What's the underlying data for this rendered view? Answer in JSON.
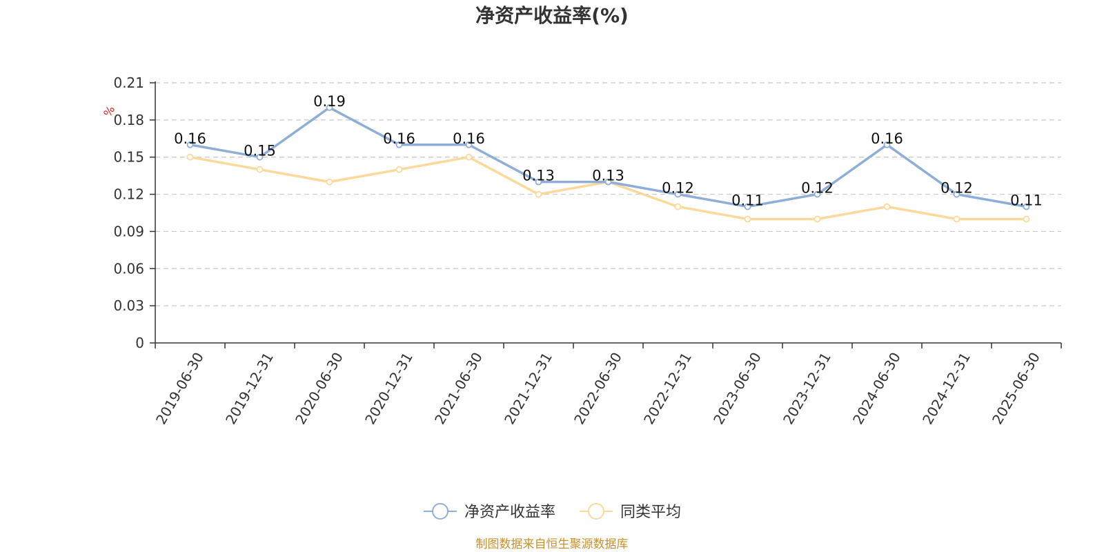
{
  "chart_data": {
    "type": "line",
    "title": "净资产收益率(%)",
    "ylabel": "%",
    "categories": [
      "2019-06-30",
      "2019-12-31",
      "2020-06-30",
      "2020-12-31",
      "2021-06-30",
      "2021-12-31",
      "2022-06-30",
      "2022-12-31",
      "2023-06-30",
      "2023-12-31",
      "2024-06-30",
      "2024-12-31",
      "2025-06-30"
    ],
    "series": [
      {
        "name": "净资产收益率",
        "color": "#8eaed8",
        "values": [
          0.16,
          0.15,
          0.19,
          0.16,
          0.16,
          0.13,
          0.13,
          0.12,
          0.11,
          0.12,
          0.16,
          0.12,
          0.11
        ],
        "data_labels": true
      },
      {
        "name": "同类平均",
        "color": "#fbd99a",
        "values": [
          0.15,
          0.14,
          0.13,
          0.14,
          0.15,
          0.12,
          0.13,
          0.11,
          0.1,
          0.1,
          0.11,
          0.1,
          0.1
        ],
        "data_labels": false
      }
    ],
    "ylim": [
      0,
      0.21
    ],
    "yticks": [
      0,
      0.03,
      0.06,
      0.09,
      0.12,
      0.15,
      0.18,
      0.21
    ],
    "ytick_labels": [
      "0",
      "0.03",
      "0.06",
      "0.09",
      "0.12",
      "0.15",
      "0.18",
      "0.21"
    ],
    "grid": true,
    "legend_position": "bottom-center"
  },
  "source_text": "制图数据来自恒生聚源数据库"
}
